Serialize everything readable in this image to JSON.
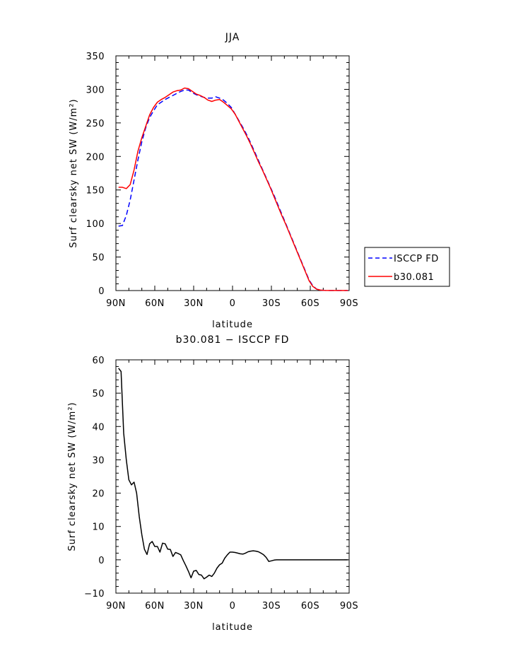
{
  "chart_data": [
    {
      "type": "line",
      "title": "JJA",
      "xlabel": "latitude",
      "ylabel": "Surf clearsky net SW (W/m²)",
      "xlim": [
        90,
        -90
      ],
      "ylim": [
        0,
        350
      ],
      "x_ticks": [
        90,
        60,
        30,
        0,
        -30,
        -60,
        -90
      ],
      "x_tick_labels": [
        "90N",
        "60N",
        "30N",
        "0",
        "30S",
        "60S",
        "90S"
      ],
      "y_ticks": [
        0,
        50,
        100,
        150,
        200,
        250,
        300,
        350
      ],
      "y_tick_labels": [
        "0",
        "50",
        "100",
        "150",
        "200",
        "250",
        "300",
        "350"
      ],
      "legend_position": "right",
      "series": [
        {
          "name": "ISCCP FD",
          "color": "#0000ff",
          "style": "dashed",
          "x": [
            88,
            85,
            82,
            79,
            76,
            73,
            70,
            67,
            64,
            61,
            58,
            55,
            52,
            49,
            46,
            43,
            40,
            37,
            34,
            31,
            28,
            25,
            22,
            19,
            16,
            13,
            10,
            7,
            4,
            1,
            -2,
            -5,
            -8,
            -11,
            -14,
            -17,
            -20,
            -23,
            -26,
            -29,
            -32,
            -35,
            -38,
            -41,
            -44,
            -47,
            -50,
            -53,
            -56,
            -59,
            -62,
            -65,
            -68,
            -71,
            -74,
            -77,
            -80,
            -83,
            -86,
            -89
          ],
          "y": [
            96,
            97,
            112,
            135,
            165,
            195,
            222,
            243,
            258,
            268,
            277,
            281,
            285,
            288,
            291,
            294,
            297,
            299,
            299,
            295,
            292,
            290,
            288,
            287,
            287,
            289,
            287,
            284,
            279,
            273,
            263,
            253,
            243,
            232,
            220,
            207,
            194,
            181,
            168,
            155,
            142,
            128,
            114,
            100,
            86,
            72,
            58,
            44,
            30,
            16,
            7,
            2,
            0.6,
            0.2,
            0.1,
            0.1,
            0.1,
            0.1,
            0.1,
            0.1
          ]
        },
        {
          "name": "b30.081",
          "color": "#ff0000",
          "style": "solid",
          "x": [
            88,
            85,
            82,
            79,
            76,
            73,
            70,
            67,
            64,
            61,
            58,
            55,
            52,
            49,
            46,
            43,
            40,
            37,
            34,
            31,
            28,
            25,
            22,
            19,
            16,
            13,
            10,
            7,
            4,
            1,
            -2,
            -5,
            -8,
            -11,
            -14,
            -17,
            -20,
            -23,
            -26,
            -29,
            -32,
            -35,
            -38,
            -41,
            -44,
            -47,
            -50,
            -53,
            -56,
            -59,
            -62,
            -65,
            -68,
            -71,
            -74,
            -77,
            -80,
            -83,
            -86,
            -89
          ],
          "y": [
            154,
            154,
            152,
            158,
            180,
            208,
            228,
            245,
            262,
            273,
            281,
            285,
            288,
            292,
            296,
            298,
            299,
            302,
            301,
            297,
            293,
            291,
            288,
            284,
            282,
            284,
            285,
            281,
            276,
            271,
            263,
            252,
            241,
            230,
            218,
            205,
            192,
            180,
            167,
            154,
            140,
            126,
            112,
            99,
            85,
            71,
            57,
            43,
            29,
            15,
            6,
            2,
            0.6,
            0.2,
            0.1,
            0.1,
            0.1,
            0.1,
            0.1,
            0.1
          ]
        }
      ]
    },
    {
      "type": "line",
      "title": "b30.081 − ISCCP FD",
      "xlabel": "latitude",
      "ylabel": "Surf clearsky net SW (W/m²)",
      "xlim": [
        90,
        -90
      ],
      "ylim": [
        -10,
        60
      ],
      "x_ticks": [
        90,
        60,
        30,
        0,
        -30,
        -60,
        -90
      ],
      "x_tick_labels": [
        "90N",
        "60N",
        "30N",
        "0",
        "30S",
        "60S",
        "90S"
      ],
      "y_ticks": [
        -10,
        0,
        10,
        20,
        30,
        40,
        50,
        60
      ],
      "y_tick_labels": [
        "−10",
        "0",
        "10",
        "20",
        "30",
        "40",
        "50",
        "60"
      ],
      "series": [
        {
          "color": "#000000",
          "style": "solid",
          "x": [
            88,
            86,
            84,
            82,
            80,
            78,
            76,
            74,
            72,
            70,
            68,
            66,
            64,
            62,
            60,
            58,
            56,
            54,
            52,
            50,
            48,
            46,
            44,
            42,
            40,
            38,
            36,
            34,
            32,
            30,
            28,
            26,
            24,
            22,
            20,
            18,
            16,
            14,
            12,
            10,
            8,
            6,
            4,
            2,
            0,
            -2,
            -4,
            -6,
            -8,
            -10,
            -12,
            -14,
            -16,
            -18,
            -20,
            -22,
            -24,
            -26,
            -28,
            -30,
            -32,
            -34,
            -36,
            -38,
            -40,
            -42,
            -44,
            -46,
            -48,
            -50,
            -52,
            -54,
            -56,
            -58,
            -60,
            -62,
            -64,
            -66,
            -68,
            -70,
            -75,
            -80,
            -85,
            -89
          ],
          "y": [
            57.5,
            56.5,
            38,
            30,
            24,
            22.5,
            23.3,
            20,
            13,
            7.5,
            3.2,
            1.6,
            4.8,
            5.5,
            4.0,
            4.0,
            2.3,
            5.0,
            4.8,
            3.2,
            3.1,
            1.0,
            2.2,
            1.9,
            1.5,
            -0.2,
            -1.8,
            -3.5,
            -5.4,
            -3.4,
            -3.2,
            -4.4,
            -4.6,
            -5.7,
            -5.2,
            -4.6,
            -5.0,
            -4.0,
            -2.5,
            -1.5,
            -1.0,
            0.5,
            1.5,
            2.3,
            2.3,
            2.2,
            2.0,
            1.8,
            1.7,
            2.0,
            2.4,
            2.6,
            2.7,
            2.6,
            2.4,
            2.0,
            1.5,
            0.7,
            -0.5,
            -0.3,
            -0.1,
            0,
            0,
            0,
            0,
            0,
            0,
            0,
            0,
            0,
            0,
            0,
            0,
            0,
            0,
            0,
            0,
            0,
            0,
            0,
            0,
            0,
            0,
            0
          ]
        }
      ]
    }
  ]
}
